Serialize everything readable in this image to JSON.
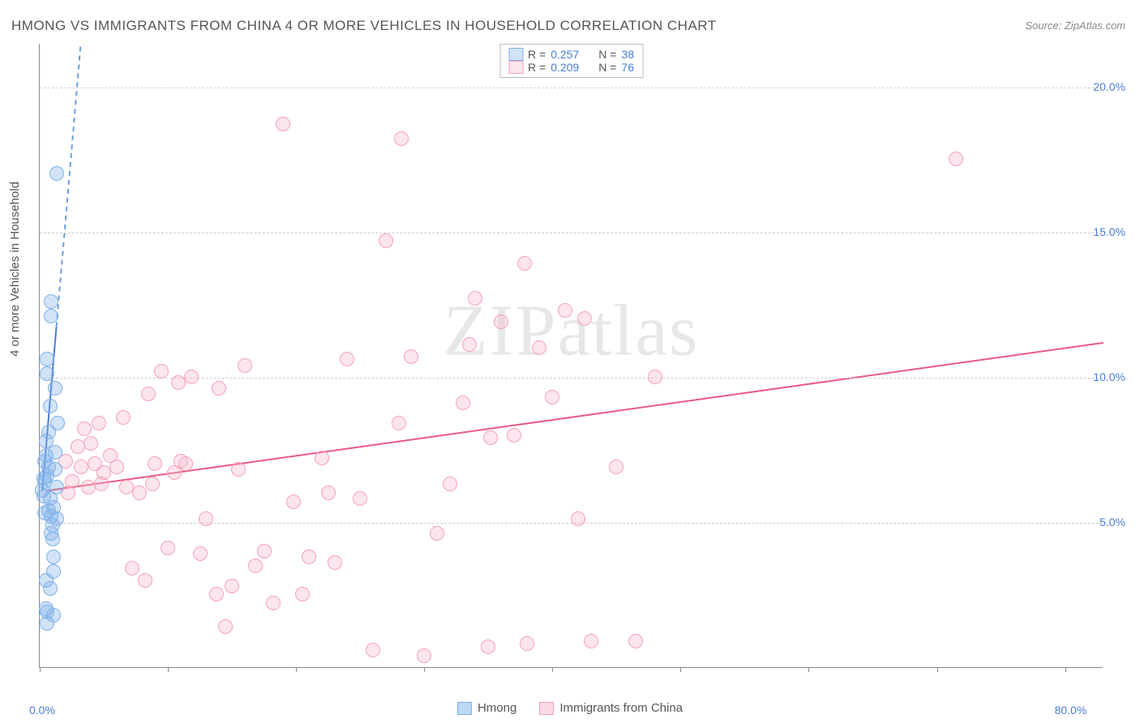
{
  "title": "HMONG VS IMMIGRANTS FROM CHINA 4 OR MORE VEHICLES IN HOUSEHOLD CORRELATION CHART",
  "source": "Source: ZipAtlas.com",
  "ylabel": "4 or more Vehicles in Household",
  "watermark_zip": "ZIP",
  "watermark_atlas": "atlas",
  "chart": {
    "type": "scatter",
    "background_color": "#ffffff",
    "grid_color": "#cccccc",
    "axis_color": "#888888",
    "point_radius": 9,
    "xlim": [
      0,
      83
    ],
    "ylim": [
      0,
      21.5
    ],
    "x_ticks": [
      0,
      10,
      20,
      30,
      40,
      50,
      60,
      70,
      80
    ],
    "x_tick_labels": {
      "0": "0.0%",
      "80": "80.0%"
    },
    "y_gridlines": [
      5,
      10,
      15,
      20
    ],
    "y_tick_labels": {
      "5": "5.0%",
      "10": "10.0%",
      "15": "15.0%",
      "20": "20.0%"
    },
    "label_color": "#4a7dd8",
    "label_fontsize": 14,
    "title_fontsize": 17,
    "title_color": "#555555"
  },
  "series": {
    "blue": {
      "label": "Hmong",
      "fill": "rgba(125,176,232,0.35)",
      "stroke": "#7db0e8",
      "trend_color": "#4a7dd8",
      "trend_dash_color": "#6b9ede",
      "R_text": "R = ",
      "R_value": "0.257",
      "N_text": "N = ",
      "N_value": "38",
      "trend": {
        "x1": 0.2,
        "y1": 6.1,
        "x2": 3.2,
        "y2": 21.5
      },
      "solid_until_x": 1.3,
      "points": [
        [
          0.2,
          6.1
        ],
        [
          0.3,
          5.9
        ],
        [
          0.4,
          6.4
        ],
        [
          0.4,
          7.1
        ],
        [
          0.5,
          7.3
        ],
        [
          0.5,
          7.8
        ],
        [
          0.5,
          2.0
        ],
        [
          0.5,
          3.0
        ],
        [
          0.6,
          10.6
        ],
        [
          0.6,
          10.1
        ],
        [
          0.6,
          6.6
        ],
        [
          0.7,
          8.1
        ],
        [
          0.8,
          9.0
        ],
        [
          0.8,
          5.8
        ],
        [
          0.8,
          2.7
        ],
        [
          0.9,
          12.6
        ],
        [
          0.9,
          12.1
        ],
        [
          1.0,
          4.9
        ],
        [
          1.0,
          4.4
        ],
        [
          1.1,
          5.5
        ],
        [
          1.1,
          3.3
        ],
        [
          1.1,
          1.8
        ],
        [
          1.2,
          7.4
        ],
        [
          1.2,
          6.8
        ],
        [
          1.2,
          9.6
        ],
        [
          1.3,
          17.0
        ],
        [
          1.3,
          6.2
        ],
        [
          1.3,
          5.1
        ],
        [
          1.4,
          8.4
        ],
        [
          0.6,
          1.5
        ],
        [
          0.6,
          1.9
        ],
        [
          0.7,
          5.4
        ],
        [
          0.9,
          5.2
        ],
        [
          0.9,
          4.6
        ],
        [
          1.1,
          3.8
        ],
        [
          0.3,
          6.5
        ],
        [
          0.4,
          5.3
        ],
        [
          0.7,
          6.9
        ]
      ]
    },
    "pink": {
      "label": "Immigrants from China",
      "fill": "rgba(248,180,200,0.35)",
      "stroke": "#f5a2b8",
      "trend_color": "#ea5a82",
      "R_text": "R = ",
      "R_value": "0.209",
      "N_text": "N = ",
      "N_value": "76",
      "trend": {
        "x1": 0.5,
        "y1": 6.1,
        "x2": 83,
        "y2": 11.2
      },
      "points": [
        [
          2.0,
          7.1
        ],
        [
          2.5,
          6.4
        ],
        [
          3.0,
          7.6
        ],
        [
          3.2,
          6.9
        ],
        [
          3.5,
          8.2
        ],
        [
          3.8,
          6.2
        ],
        [
          4.0,
          7.7
        ],
        [
          4.3,
          7.0
        ],
        [
          4.6,
          8.4
        ],
        [
          5.0,
          6.7
        ],
        [
          5.5,
          7.3
        ],
        [
          6.0,
          6.9
        ],
        [
          6.5,
          8.6
        ],
        [
          7.2,
          3.4
        ],
        [
          7.8,
          6.0
        ],
        [
          8.2,
          3.0
        ],
        [
          8.5,
          9.4
        ],
        [
          9.0,
          7.0
        ],
        [
          9.5,
          10.2
        ],
        [
          10.0,
          4.1
        ],
        [
          10.5,
          6.7
        ],
        [
          11.0,
          7.1
        ],
        [
          11.8,
          10.0
        ],
        [
          12.5,
          3.9
        ],
        [
          13.0,
          5.1
        ],
        [
          13.8,
          2.5
        ],
        [
          14.5,
          1.4
        ],
        [
          15.0,
          2.8
        ],
        [
          15.5,
          6.8
        ],
        [
          16.0,
          10.4
        ],
        [
          16.8,
          3.5
        ],
        [
          17.5,
          4.0
        ],
        [
          18.2,
          2.2
        ],
        [
          19.0,
          18.7
        ],
        [
          19.8,
          5.7
        ],
        [
          20.5,
          2.5
        ],
        [
          21.0,
          3.8
        ],
        [
          22.0,
          7.2
        ],
        [
          23.0,
          3.6
        ],
        [
          24.0,
          10.6
        ],
        [
          25.0,
          5.8
        ],
        [
          26.0,
          0.6
        ],
        [
          27.0,
          14.7
        ],
        [
          28.0,
          8.4
        ],
        [
          28.2,
          18.2
        ],
        [
          29.0,
          10.7
        ],
        [
          30.0,
          0.4
        ],
        [
          31.0,
          4.6
        ],
        [
          32.0,
          6.3
        ],
        [
          33.0,
          9.1
        ],
        [
          34.0,
          12.7
        ],
        [
          35.0,
          0.7
        ],
        [
          35.2,
          7.9
        ],
        [
          36.0,
          11.9
        ],
        [
          37.0,
          8.0
        ],
        [
          37.8,
          13.9
        ],
        [
          38.0,
          0.8
        ],
        [
          39.0,
          11.0
        ],
        [
          40.0,
          9.3
        ],
        [
          41.0,
          12.3
        ],
        [
          42.0,
          5.1
        ],
        [
          42.5,
          12.0
        ],
        [
          43.0,
          0.9
        ],
        [
          45.0,
          6.9
        ],
        [
          48.0,
          10.0
        ],
        [
          71.5,
          17.5
        ],
        [
          33.5,
          11.1
        ],
        [
          14.0,
          9.6
        ],
        [
          10.8,
          9.8
        ],
        [
          6.8,
          6.2
        ],
        [
          8.8,
          6.3
        ],
        [
          2.2,
          6.0
        ],
        [
          4.8,
          6.3
        ],
        [
          11.4,
          7.0
        ],
        [
          46.5,
          0.9
        ],
        [
          22.5,
          6.0
        ]
      ]
    }
  },
  "legend_bottom": [
    {
      "label": "Hmong",
      "color_fill": "rgba(125,176,232,0.5)",
      "color_stroke": "#7db0e8"
    },
    {
      "label": "Immigrants from China",
      "color_fill": "rgba(248,180,200,0.5)",
      "color_stroke": "#f5a2b8"
    }
  ]
}
